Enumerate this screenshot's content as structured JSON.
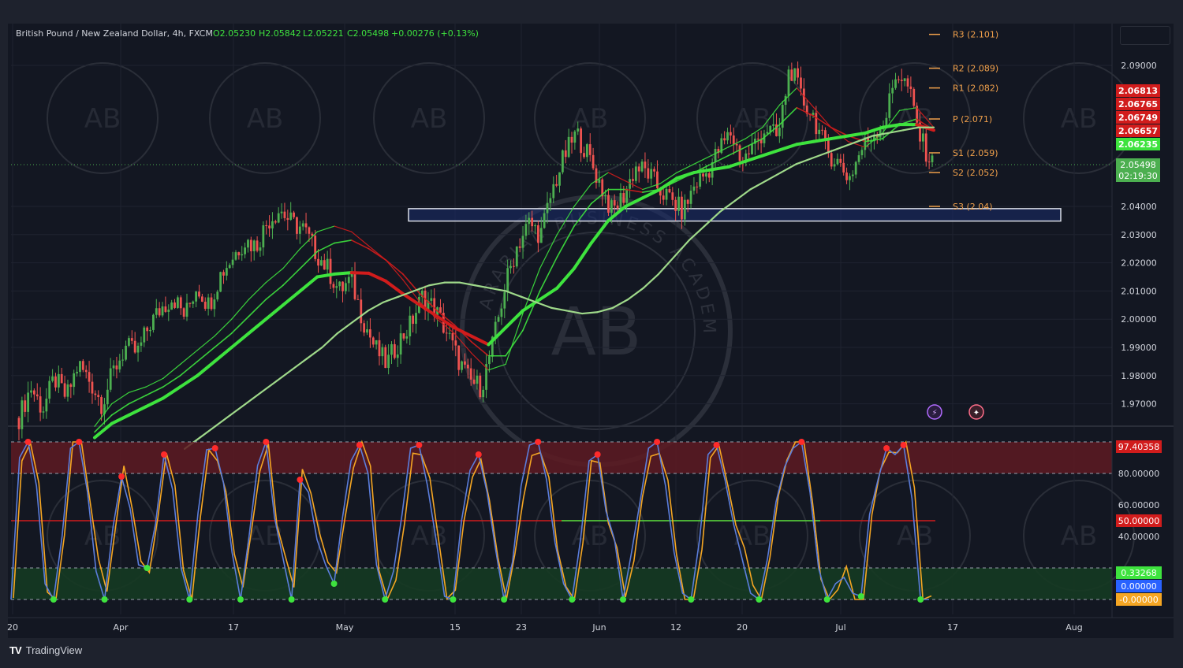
{
  "header": {
    "symbol": "British Pound / New Zealand Dollar, 4h, FXCM",
    "open": "O2.05230",
    "high": "H2.05842",
    "low": "L2.05221",
    "close": "C2.05498",
    "change": "+0.00276 (+0.13%)"
  },
  "watermark_text": "ARABIAN BUSINESS ACADEMY",
  "watermark_monogram": "AB",
  "brand": "TradingView",
  "colors": {
    "background": "#131722",
    "up": "#4caf50",
    "down": "#ef5350",
    "ma_up": "#3ee33e",
    "ma_down": "#d11c1c",
    "ma_slow": "#9fd98a",
    "zone_border": "#d9dde6",
    "zone_fill": "#1a2b6b",
    "pivot": "#f0a04b",
    "stoch_k": "#5b7ddb",
    "stoch_d": "#f5a623",
    "overbought": "#5e1a22",
    "oversold": "#153a22"
  },
  "chart_data": [
    {
      "type": "line",
      "title": "British Pound / New Zealand Dollar, 4h, FXCM",
      "note_marks": "price path drawn as approximate candle series with multiple moving-average ribbons",
      "x_ticks": [
        "20",
        "Apr",
        "17",
        "May",
        "15",
        "23",
        "Jun",
        "12",
        "20",
        "Jul",
        "17",
        "Aug"
      ],
      "ylim": [
        1.964,
        2.105
      ],
      "y_ticks": [
        "2.09000",
        "2.04000",
        "2.03000",
        "2.02000",
        "2.01000",
        "2.00000",
        "1.99000",
        "1.98000",
        "1.97000"
      ],
      "last_price": "2.05498",
      "countdown": "02:19:30",
      "price_labels": [
        {
          "value": "2.06813",
          "color": "#d11c1c"
        },
        {
          "value": "2.06765",
          "color": "#d11c1c"
        },
        {
          "value": "2.06749",
          "color": "#d11c1c"
        },
        {
          "value": "2.06657",
          "color": "#d11c1c"
        },
        {
          "value": "2.06235",
          "color": "#3ee33e"
        }
      ],
      "pivots": [
        {
          "label": "R3 (2.101)",
          "value": 2.101
        },
        {
          "label": "R2 (2.089)",
          "value": 2.089
        },
        {
          "label": "R1 (2.082)",
          "value": 2.082
        },
        {
          "label": "P (2.071)",
          "value": 2.071
        },
        {
          "label": "S1 (2.059)",
          "value": 2.059
        },
        {
          "label": "S2 (2.052)",
          "value": 2.052
        },
        {
          "label": "S3 (2.04)",
          "value": 2.04
        }
      ],
      "zone": {
        "low": 2.0348,
        "high": 2.0392,
        "from": "May 10",
        "to": "Jul 31"
      },
      "price_path": [
        1.965,
        1.976,
        1.968,
        1.979,
        1.972,
        1.984,
        1.978,
        1.97,
        1.982,
        1.99,
        1.988,
        1.998,
        2.004,
        2.008,
        2.001,
        2.012,
        2.005,
        2.016,
        2.022,
        2.028,
        2.026,
        2.035,
        2.039,
        2.034,
        2.032,
        2.024,
        2.018,
        2.01,
        2.014,
        2.0,
        1.99,
        1.984,
        1.992,
        1.998,
        2.008,
        2.004,
        1.996,
        1.986,
        1.978,
        1.976,
        1.992,
        2.012,
        2.026,
        2.034,
        2.03,
        2.046,
        2.058,
        2.066,
        2.058,
        2.048,
        2.038,
        2.044,
        2.054,
        2.052,
        2.046,
        2.042,
        2.038,
        2.048,
        2.052,
        2.06,
        2.066,
        2.056,
        2.062,
        2.068,
        2.064,
        2.09,
        2.078,
        2.072,
        2.06,
        2.056,
        2.05,
        2.06,
        2.066,
        2.07,
        2.088,
        2.082,
        2.064,
        2.055
      ],
      "moving_averages": [
        {
          "name": "",
          "values": [
            1.962,
            1.97,
            1.974,
            1.976,
            1.979,
            1.984,
            1.989,
            1.994,
            2.0,
            2.007,
            2.013,
            2.018,
            2.025,
            2.031,
            2.033,
            2.031,
            2.026,
            2.021,
            2.014,
            2.006,
            2.0,
            1.995,
            1.988,
            1.982,
            1.984,
            2.002,
            2.018,
            2.03,
            2.04,
            2.048,
            2.052,
            2.049,
            2.046,
            2.048,
            2.052,
            2.055,
            2.058,
            2.061,
            2.064,
            2.068,
            2.076,
            2.082,
            2.075,
            2.068,
            2.063,
            2.061,
            2.066,
            2.074,
            2.075,
            2.068
          ]
        },
        {
          "name": "",
          "values": [
            1.96,
            1.966,
            1.97,
            1.973,
            1.976,
            1.98,
            1.985,
            1.99,
            1.995,
            2.001,
            2.007,
            2.012,
            2.018,
            2.024,
            2.027,
            2.028,
            2.025,
            2.021,
            2.016,
            2.009,
            2.003,
            1.998,
            1.992,
            1.987,
            1.987,
            1.996,
            2.01,
            2.022,
            2.033,
            2.041,
            2.046,
            2.046,
            2.045,
            2.046,
            2.049,
            2.052,
            2.055,
            2.058,
            2.061,
            2.064,
            2.069,
            2.075,
            2.072,
            2.068,
            2.065,
            2.063,
            2.064,
            2.069,
            2.071,
            2.067
          ]
        },
        {
          "name": "",
          "values": [
            1.958,
            1.963,
            1.966,
            1.969,
            1.972,
            1.976,
            1.98,
            1.985,
            1.99,
            1.995,
            2.0,
            2.005,
            2.01,
            2.015,
            2.016,
            2.0165,
            2.0163,
            2.0135,
            2.009,
            2.005,
            2.001,
            1.997,
            1.994,
            1.991,
            1.997,
            2.003,
            2.007,
            2.011,
            2.018,
            2.027,
            2.035,
            2.04,
            2.043,
            2.046,
            2.05,
            2.052,
            2.053,
            2.054,
            2.056,
            2.058,
            2.06,
            2.062,
            2.063,
            2.064,
            2.065,
            2.066,
            2.068,
            2.069,
            2.069,
            2.067
          ]
        },
        {
          "name": "",
          "values": [
            1.954,
            1.958,
            1.962,
            1.966,
            1.97,
            1.974,
            1.978,
            1.982,
            1.986,
            1.99,
            1.995,
            1.999,
            2.003,
            2.006,
            2.008,
            2.01,
            2.012,
            2.013,
            2.013,
            2.012,
            2.011,
            2.01,
            2.008,
            2.006,
            2.004,
            2.003,
            2.002,
            2.0025,
            2.004,
            2.007,
            2.011,
            2.016,
            2.022,
            2.028,
            2.033,
            2.038,
            2.042,
            2.046,
            2.049,
            2.052,
            2.055,
            2.057,
            2.059,
            2.061,
            2.063,
            2.065,
            2.066,
            2.067,
            2.068,
            2.068
          ]
        }
      ]
    },
    {
      "type": "line",
      "title": "",
      "ylim": [
        0,
        100
      ],
      "y_ticks": [
        "80.00000",
        "60.00000",
        "40.00000"
      ],
      "levels": [
        80,
        50,
        20,
        0
      ],
      "value_labels": [
        {
          "value": "97.40358",
          "color": "#d11c1c"
        },
        {
          "value": "50.00000",
          "color": "#d11c1c"
        },
        {
          "value": "0.33268",
          "color": "#3ee33e"
        },
        {
          "value": "0.00000",
          "color": "#2962ff"
        },
        {
          "value": "-0.00000",
          "color": "#f5a623"
        }
      ],
      "series": [
        {
          "name": "",
          "values": [
            0,
            90,
            100,
            72,
            10,
            0,
            40,
            96,
            100,
            68,
            18,
            0,
            46,
            78,
            58,
            22,
            20,
            48,
            92,
            70,
            20,
            0,
            55,
            95,
            96,
            74,
            30,
            0,
            40,
            85,
            100,
            52,
            26,
            0,
            76,
            68,
            38,
            22,
            10,
            52,
            88,
            98,
            80,
            22,
            0,
            18,
            54,
            96,
            98,
            72,
            38,
            2,
            0,
            50,
            82,
            92,
            68,
            32,
            0,
            24,
            72,
            98,
            100,
            76,
            36,
            10,
            0,
            38,
            88,
            92,
            56,
            38,
            0,
            30,
            62,
            96,
            100,
            72,
            30,
            4,
            0,
            38,
            92,
            98,
            76,
            48,
            26,
            4,
            0,
            26,
            62,
            84,
            96,
            100,
            68,
            20,
            0,
            10,
            14,
            4,
            2,
            54,
            76,
            96,
            92,
            98,
            64,
            0,
            0
          ]
        }
      ]
    }
  ]
}
